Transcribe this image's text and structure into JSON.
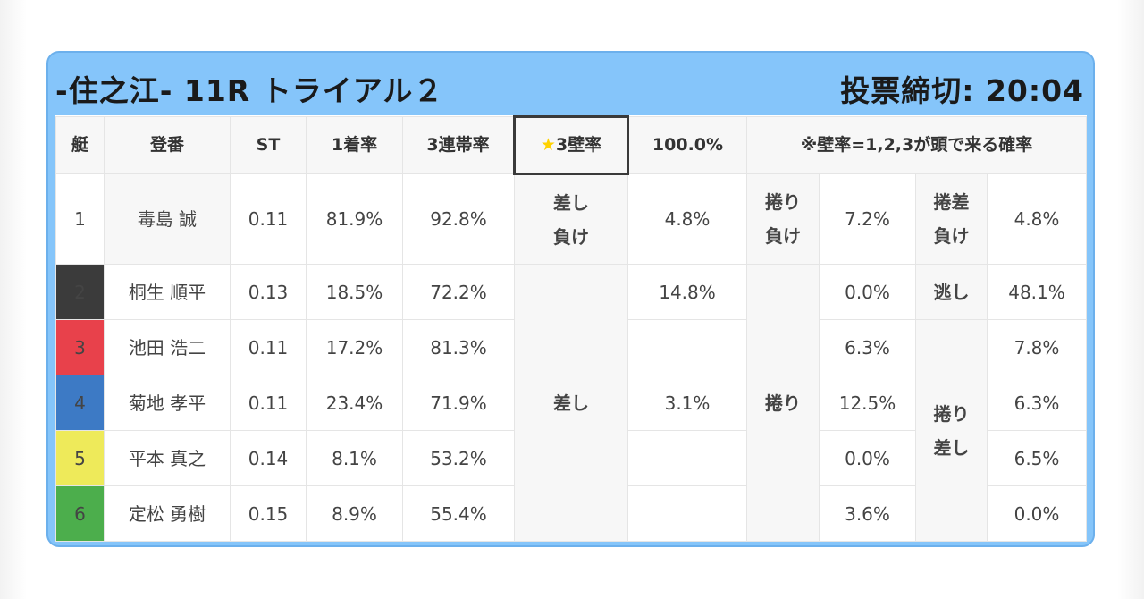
{
  "header": {
    "title": "-住之江- 11R トライアル２",
    "deadline": "投票締切: 20:04"
  },
  "columns": {
    "boat": "艇",
    "racer": "登番",
    "st": "ST",
    "first_rate": "1着率",
    "top3_rate": "3連帯率",
    "wall_label": "3壁率",
    "wall_value": "100.0%",
    "note": "※壁率=1,2,3が頭で来る確率"
  },
  "rows": [
    {
      "boat": "1",
      "name": "毒島 誠",
      "st": "0.11",
      "first": "81.9%",
      "top3": "92.8%"
    },
    {
      "boat": "2",
      "name": "桐生 順平",
      "st": "0.13",
      "first": "18.5%",
      "top3": "72.2%"
    },
    {
      "boat": "3",
      "name": "池田 浩二",
      "st": "0.11",
      "first": "17.2%",
      "top3": "81.3%"
    },
    {
      "boat": "4",
      "name": "菊地 孝平",
      "st": "0.11",
      "first": "23.4%",
      "top3": "71.9%"
    },
    {
      "boat": "5",
      "name": "平本 真之",
      "st": "0.14",
      "first": "8.1%",
      "top3": "53.2%"
    },
    {
      "boat": "6",
      "name": "定松 勇樹",
      "st": "0.15",
      "first": "8.9%",
      "top3": "55.4%"
    }
  ],
  "patterns": {
    "sashi_make": {
      "l1": "差し",
      "l2": "負け",
      "value": "4.8%"
    },
    "makuri_make": {
      "l1": "捲り",
      "l2": "負け",
      "value": "7.2%"
    },
    "makurisashi_make": {
      "l1": "捲差",
      "l2": "負け",
      "value": "4.8%"
    },
    "nige": {
      "label": "逃し",
      "value": "48.1%"
    },
    "sashi": {
      "label": "差し",
      "values": [
        "14.8%",
        "",
        "3.1%",
        "",
        ""
      ]
    },
    "makuri": {
      "label": "捲り",
      "values": [
        "0.0%",
        "6.3%",
        "12.5%",
        "0.0%",
        "3.6%"
      ]
    },
    "makurisashi": {
      "l1": "捲り",
      "l2": "差し",
      "values": [
        "7.8%",
        "6.3%",
        "6.5%",
        "0.0%"
      ]
    }
  }
}
